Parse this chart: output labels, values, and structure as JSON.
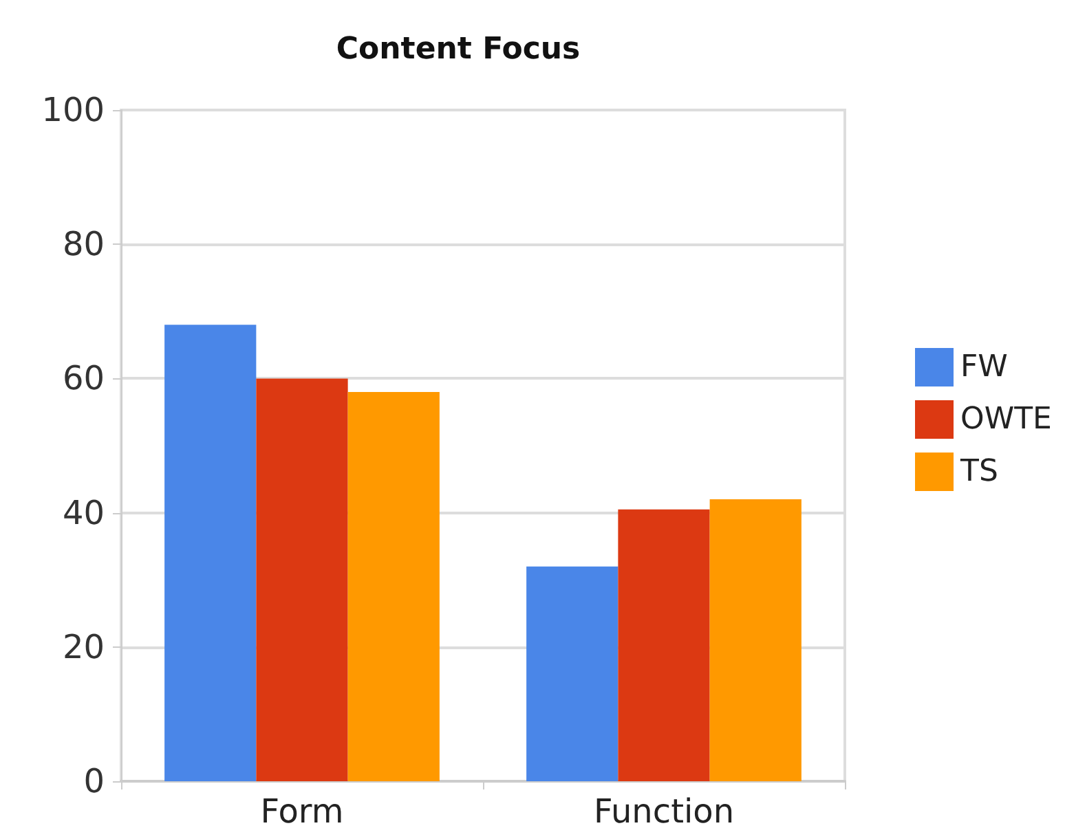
{
  "chart_data": {
    "type": "bar",
    "title": "Content Focus",
    "categories": [
      "Form",
      "Function"
    ],
    "series": [
      {
        "name": "FW",
        "color": "#4a86e8",
        "values": [
          68,
          32
        ]
      },
      {
        "name": "OWTE",
        "color": "#dc3912",
        "values": [
          60,
          40.5
        ]
      },
      {
        "name": "TS",
        "color": "#ff9900",
        "values": [
          58,
          42
        ]
      }
    ],
    "ylim": [
      0,
      100
    ],
    "yticks": [
      0,
      20,
      40,
      60,
      80,
      100
    ],
    "grid": "y",
    "legend": "right"
  }
}
